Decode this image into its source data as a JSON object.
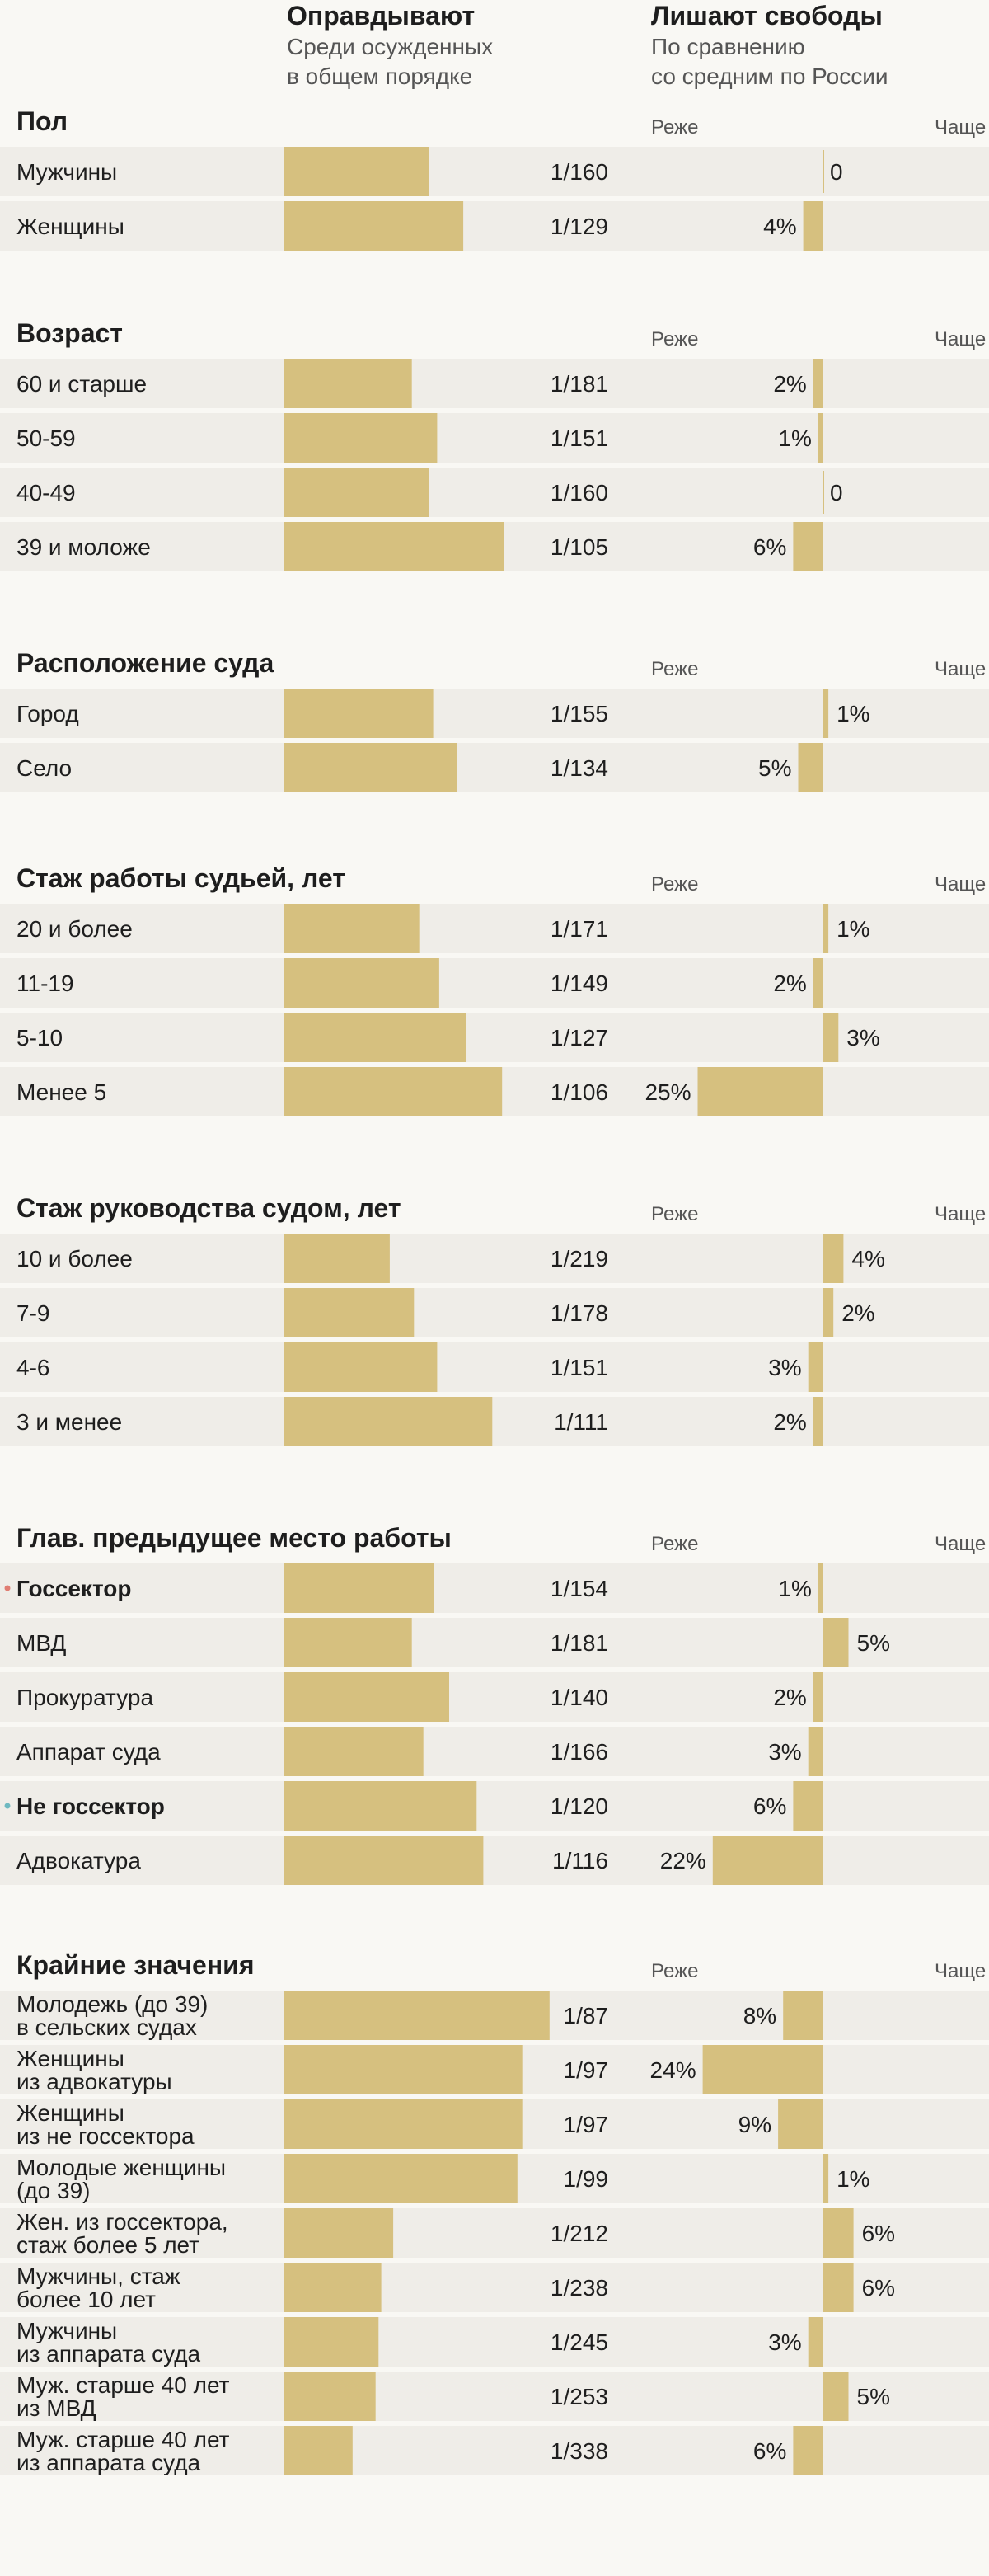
{
  "colors": {
    "bar": "#d6c07f",
    "row_bg": "#efede8",
    "background": "#f9f8f4",
    "marker_red": "#e07d72",
    "marker_teal": "#6fb9c0"
  },
  "chart_data": {
    "type": "bar",
    "columns": {
      "acquittal": {
        "title": "Оправдывают",
        "subtitle": [
          "Среди осужденных",
          "в общем порядке"
        ]
      },
      "prison": {
        "title": "Лишают свободы",
        "subtitle": [
          "По сравнению",
          "со средним по России"
        ],
        "less_label": "Реже",
        "more_label": "Чаще"
      }
    },
    "sections": [
      {
        "title": "Пол",
        "rows": [
          {
            "label": [
              "Мужчины"
            ],
            "acquit": "1/160",
            "acquit_den": 160,
            "prison": 0,
            "prison_label": "0"
          },
          {
            "label": [
              "Женщины"
            ],
            "acquit": "1/129",
            "acquit_den": 129,
            "prison": -4,
            "prison_label": "4%"
          }
        ]
      },
      {
        "title": "Возраст",
        "rows": [
          {
            "label": [
              "60 и старше"
            ],
            "acquit": "1/181",
            "acquit_den": 181,
            "prison": -2,
            "prison_label": "2%"
          },
          {
            "label": [
              "50-59"
            ],
            "acquit": "1/151",
            "acquit_den": 151,
            "prison": -1,
            "prison_label": "1%"
          },
          {
            "label": [
              "40-49"
            ],
            "acquit": "1/160",
            "acquit_den": 160,
            "prison": 0,
            "prison_label": "0"
          },
          {
            "label": [
              "39 и моложе"
            ],
            "acquit": "1/105",
            "acquit_den": 105,
            "prison": -6,
            "prison_label": "6%"
          }
        ]
      },
      {
        "title": "Расположение суда",
        "rows": [
          {
            "label": [
              "Город"
            ],
            "acquit": "1/155",
            "acquit_den": 155,
            "prison": 1,
            "prison_label": "1%"
          },
          {
            "label": [
              "Село"
            ],
            "acquit": "1/134",
            "acquit_den": 134,
            "prison": -5,
            "prison_label": "5%"
          }
        ]
      },
      {
        "title": "Стаж работы судьей, лет",
        "rows": [
          {
            "label": [
              "20 и более"
            ],
            "acquit": "1/171",
            "acquit_den": 171,
            "prison": 1,
            "prison_label": "1%"
          },
          {
            "label": [
              "11-19"
            ],
            "acquit": "1/149",
            "acquit_den": 149,
            "prison": -2,
            "prison_label": "2%"
          },
          {
            "label": [
              "5-10"
            ],
            "acquit": "1/127",
            "acquit_den": 127,
            "prison": 3,
            "prison_label": "3%"
          },
          {
            "label": [
              "Менее 5"
            ],
            "acquit": "1/106",
            "acquit_den": 106,
            "prison": -25,
            "prison_label": "25%"
          }
        ]
      },
      {
        "title": "Стаж руководства судом, лет",
        "rows": [
          {
            "label": [
              "10 и более"
            ],
            "acquit": "1/219",
            "acquit_den": 219,
            "prison": 4,
            "prison_label": "4%"
          },
          {
            "label": [
              "7-9"
            ],
            "acquit": "1/178",
            "acquit_den": 178,
            "prison": 2,
            "prison_label": "2%"
          },
          {
            "label": [
              "4-6"
            ],
            "acquit": "1/151",
            "acquit_den": 151,
            "prison": -3,
            "prison_label": "3%"
          },
          {
            "label": [
              "3 и менее"
            ],
            "acquit": "1/111",
            "acquit_den": 111,
            "prison": -2,
            "prison_label": "2%"
          }
        ]
      },
      {
        "title": "Глав. предыдущее место работы",
        "rows": [
          {
            "label": [
              "Госсектор"
            ],
            "bold": true,
            "marker": "red",
            "acquit": "1/154",
            "acquit_den": 154,
            "prison": -1,
            "prison_label": "1%"
          },
          {
            "label": [
              "МВД"
            ],
            "acquit": "1/181",
            "acquit_den": 181,
            "prison": 5,
            "prison_label": "5%"
          },
          {
            "label": [
              "Прокуратура"
            ],
            "acquit": "1/140",
            "acquit_den": 140,
            "prison": -2,
            "prison_label": "2%"
          },
          {
            "label": [
              "Аппарат суда"
            ],
            "acquit": "1/166",
            "acquit_den": 166,
            "prison": -3,
            "prison_label": "3%"
          },
          {
            "label": [
              "Не госсектор"
            ],
            "bold": true,
            "marker": "teal",
            "acquit": "1/120",
            "acquit_den": 120,
            "prison": -6,
            "prison_label": "6%"
          },
          {
            "label": [
              "Адвокатура"
            ],
            "acquit": "1/116",
            "acquit_den": 116,
            "prison": -22,
            "prison_label": "22%"
          }
        ]
      },
      {
        "title": "Крайние значения",
        "rows": [
          {
            "label": [
              "Молодежь (до 39)",
              "в сельских судах"
            ],
            "acquit": "1/87",
            "acquit_den": 87,
            "prison": -8,
            "prison_label": "8%"
          },
          {
            "label": [
              "Женщины",
              "из адвокатуры"
            ],
            "acquit": "1/97",
            "acquit_den": 97,
            "prison": -24,
            "prison_label": "24%"
          },
          {
            "label": [
              "Женщины",
              "из не госсектора"
            ],
            "acquit": "1/97",
            "acquit_den": 97,
            "prison": -9,
            "prison_label": "9%"
          },
          {
            "label": [
              "Молодые женщины",
              "(до 39)"
            ],
            "acquit": "1/99",
            "acquit_den": 99,
            "prison": 1,
            "prison_label": "1%"
          },
          {
            "label": [
              "Жен. из госсектора,",
              "стаж более 5 лет"
            ],
            "acquit": "1/212",
            "acquit_den": 212,
            "prison": 6,
            "prison_label": "6%"
          },
          {
            "label": [
              "Мужчины, стаж",
              "более 10 лет"
            ],
            "acquit": "1/238",
            "acquit_den": 238,
            "prison": 6,
            "prison_label": "6%"
          },
          {
            "label": [
              "Мужчины",
              "из аппарата суда"
            ],
            "acquit": "1/245",
            "acquit_den": 245,
            "prison": -3,
            "prison_label": "3%"
          },
          {
            "label": [
              "Муж. старше 40 лет",
              "из МВД"
            ],
            "acquit": "1/253",
            "acquit_den": 253,
            "prison": 5,
            "prison_label": "5%"
          },
          {
            "label": [
              "Муж. старше 40 лет",
              "из аппарата суда"
            ],
            "acquit": "1/338",
            "acquit_den": 338,
            "prison": -6,
            "prison_label": "6%"
          }
        ]
      }
    ]
  }
}
